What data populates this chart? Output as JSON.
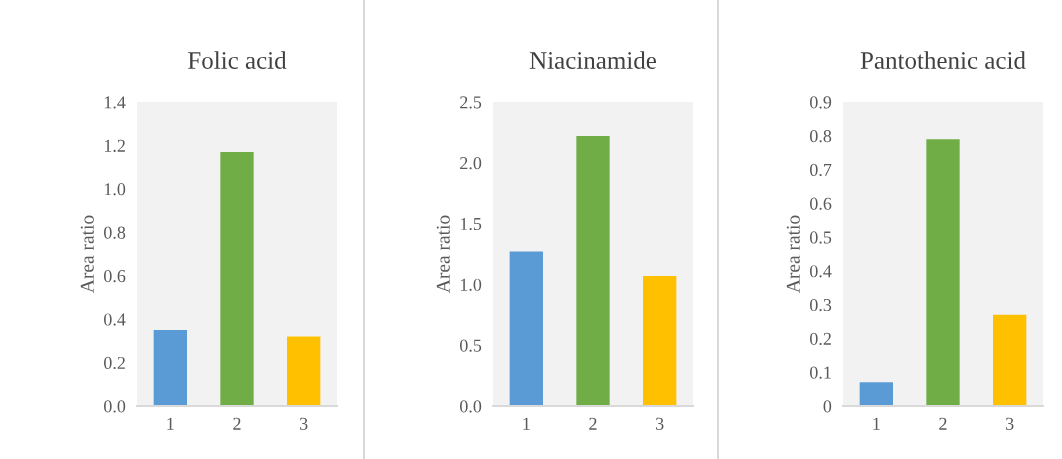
{
  "chart_data": [
    {
      "type": "bar",
      "title": "Folic acid",
      "ylabel": "Area ratio",
      "categories": [
        "1",
        "2",
        "3"
      ],
      "values": [
        0.35,
        1.17,
        0.32
      ],
      "colors": [
        "#5b9bd5",
        "#70ad47",
        "#ffc000"
      ],
      "ylim": [
        0,
        1.4
      ],
      "yticks": [
        {
          "value": 0,
          "label": "0.0"
        },
        0.2,
        0.4,
        0.6,
        0.8,
        {
          "value": 1,
          "label": "1.0"
        },
        1.2,
        1.4
      ],
      "grid": false
    },
    {
      "type": "bar",
      "title": "Niacinamide",
      "ylabel": "Area ratio",
      "categories": [
        "1",
        "2",
        "3"
      ],
      "values": [
        1.27,
        2.22,
        1.07
      ],
      "colors": [
        "#5b9bd5",
        "#70ad47",
        "#ffc000"
      ],
      "ylim": [
        0,
        2.5
      ],
      "yticks": [
        {
          "value": 0,
          "label": "0.0"
        },
        0.5,
        {
          "value": 1,
          "label": "1.0"
        },
        1.5,
        {
          "value": 2,
          "label": "2.0"
        },
        2.5
      ],
      "grid": false
    },
    {
      "type": "bar",
      "title": "Pantothenic acid",
      "ylabel": "Area ratio",
      "categories": [
        "1",
        "2",
        "3"
      ],
      "values": [
        0.07,
        0.79,
        0.27
      ],
      "colors": [
        "#5b9bd5",
        "#70ad47",
        "#ffc000"
      ],
      "ylim": [
        0,
        0.9
      ],
      "yticks": [
        0,
        0.1,
        0.2,
        0.3,
        0.4,
        0.5,
        0.6,
        0.7,
        0.8,
        0.9
      ],
      "grid": false
    }
  ]
}
